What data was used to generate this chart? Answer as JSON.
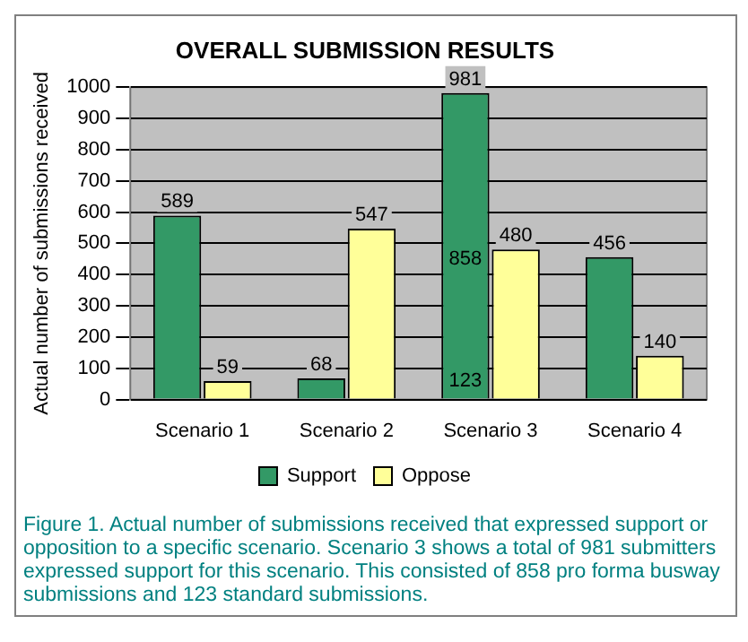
{
  "chart_data": {
    "type": "bar",
    "title": "OVERALL SUBMISSION RESULTS",
    "ylabel": "Actual number of submissions received",
    "categories": [
      "Scenario 1",
      "Scenario 2",
      "Scenario 3",
      "Scenario 4"
    ],
    "series": [
      {
        "name": "Support",
        "color": "#339966",
        "values": [
          589,
          68,
          981,
          456
        ]
      },
      {
        "name": "Oppose",
        "color": "#ffff99",
        "values": [
          59,
          547,
          480,
          140
        ]
      }
    ],
    "data_labels": true,
    "ylim": [
      0,
      1000
    ],
    "yticks": [
      0,
      100,
      200,
      300,
      400,
      500,
      600,
      700,
      800,
      900,
      1000
    ],
    "grid": "y",
    "legend": "bottom",
    "annotations": [
      {
        "text": "858",
        "x": "Scenario 3",
        "y": 450
      },
      {
        "text": "123",
        "x": "Scenario 3",
        "y": 60
      },
      "Figure 1. Actual number of submissions received that expressed support or opposition to a specific scenario. Scenario 3 shows a total of 981 submitters expressed support for this scenario. This consisted of 858 pro forma busway submissions and 123 standard submissions."
    ]
  }
}
